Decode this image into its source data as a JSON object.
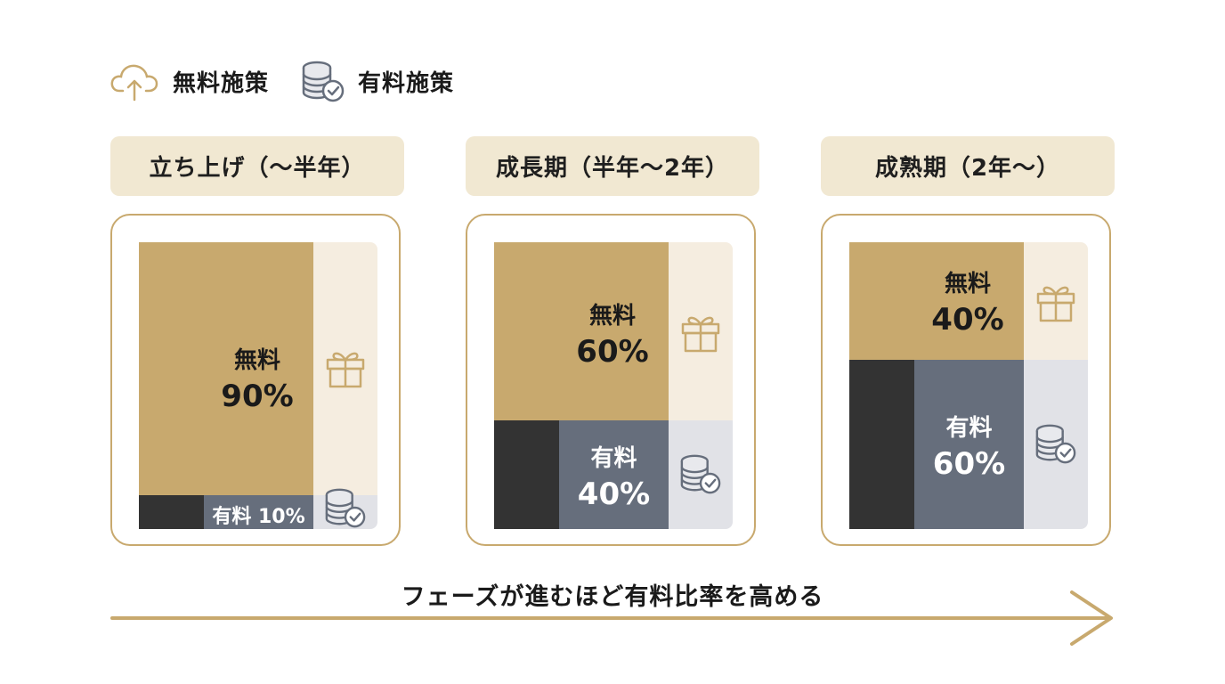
{
  "legend": {
    "free": {
      "label": "無料施策",
      "icon": "cloud-upload-icon",
      "color": "#c8a96e"
    },
    "paid": {
      "label": "有料施策",
      "icon": "coins-check-icon",
      "color": "#666e7c"
    }
  },
  "phases": [
    {
      "title": "立ち上げ（〜半年）",
      "free_label": "無料",
      "free_pct": "90%",
      "paid_label": "有料 10%"
    },
    {
      "title": "成長期（半年〜2年）",
      "free_label": "無料",
      "free_pct": "60%",
      "paid_label": "有料",
      "paid_pct": "40%"
    },
    {
      "title": "成熟期（2年〜）",
      "free_label": "無料",
      "free_pct": "40%",
      "paid_label": "有料",
      "paid_pct": "60%"
    }
  ],
  "caption": "フェーズが進むほど有料比率を高める",
  "chart_data": {
    "type": "bar",
    "categories": [
      "立ち上げ（〜半年）",
      "成長期（半年〜2年）",
      "成熟期（2年〜）"
    ],
    "series": [
      {
        "name": "無料",
        "values": [
          90,
          60,
          40
        ]
      },
      {
        "name": "有料",
        "values": [
          10,
          40,
          60
        ]
      }
    ],
    "stacked": true,
    "ylim": [
      0,
      100
    ],
    "colors": {
      "free": "#c8a96e",
      "paid": "#666e7c",
      "paid_dark": "#333333",
      "free_light": "#f5ede0",
      "paid_light": "#e1e2e7"
    }
  }
}
